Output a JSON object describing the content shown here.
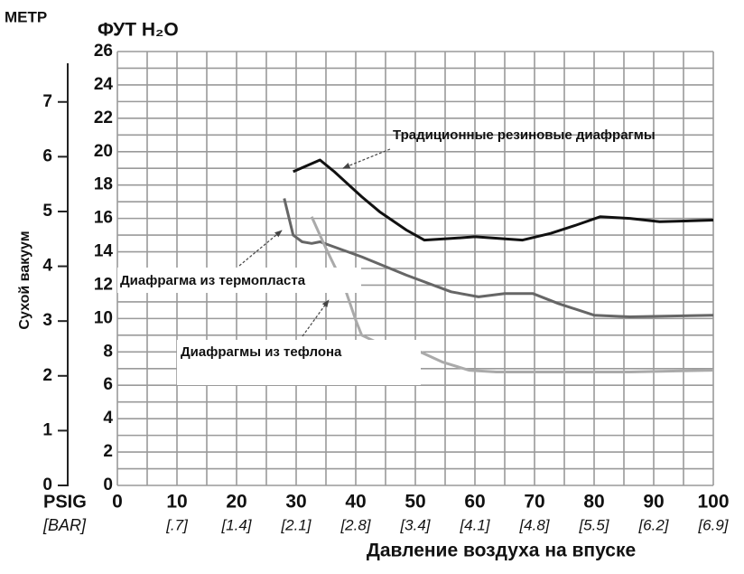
{
  "chart_data": {
    "type": "line",
    "y_unit": "ФУТ H₂O",
    "y2_unit": "МЕТР",
    "y_title": "Сухой вакуум",
    "x_title": "Давление воздуха на впуске",
    "x_unit": "PSIG",
    "x2_unit": "[BAR]",
    "xlim": [
      0,
      100
    ],
    "xticks": [
      0,
      10,
      20,
      30,
      40,
      50,
      60,
      70,
      80,
      90,
      100
    ],
    "x2ticks": [
      {
        "value": 10,
        "label": "[.7]"
      },
      {
        "value": 20,
        "label": "[1.4]"
      },
      {
        "value": 30,
        "label": "[2.1]"
      },
      {
        "value": 40,
        "label": "[2.8]"
      },
      {
        "value": 50,
        "label": "[3.4]"
      },
      {
        "value": 60,
        "label": "[4.1]"
      },
      {
        "value": 70,
        "label": "[4.8]"
      },
      {
        "value": 80,
        "label": "[5.5]"
      },
      {
        "value": 90,
        "label": "[6.2]"
      },
      {
        "value": 100,
        "label": "[6.9]"
      }
    ],
    "x_minor_ticks": [
      5,
      15,
      25,
      35,
      45,
      55,
      65,
      75,
      85,
      95
    ],
    "ylim": [
      0,
      26
    ],
    "yticks": [
      0,
      2,
      4,
      6,
      8,
      10,
      12,
      14,
      16,
      18,
      20,
      22,
      24,
      26
    ],
    "y_minor_ticks": [
      1,
      3,
      5,
      7,
      9,
      11,
      13,
      15,
      17,
      19,
      21,
      23,
      25
    ],
    "y2lim": [
      0,
      7.92
    ],
    "y2ticks": [
      0,
      1,
      2,
      3,
      4,
      5,
      6,
      7
    ],
    "grid": true,
    "series": [
      {
        "name": "Традиционные резиновые диафрагмы",
        "color": "#111111",
        "x": [
          29.5,
          34,
          36.4,
          41,
          44,
          48.5,
          51.5,
          56,
          60,
          68,
          72.7,
          77,
          81,
          86,
          91,
          100
        ],
        "values": [
          18.8,
          19.5,
          18.8,
          17.3,
          16.4,
          15.3,
          14.7,
          14.8,
          14.9,
          14.7,
          15.1,
          15.6,
          16.1,
          16.0,
          15.8,
          15.9
        ]
      },
      {
        "name": "Диафрагма из термопласта",
        "color": "#666666",
        "x": [
          28,
          29.5,
          31,
          32.6,
          34,
          41,
          48.5,
          56,
          60.6,
          65,
          69.7,
          74,
          80,
          86,
          100
        ],
        "values": [
          17.2,
          15.0,
          14.6,
          14.5,
          14.6,
          13.7,
          12.6,
          11.6,
          11.3,
          11.5,
          11.5,
          10.9,
          10.2,
          10.1,
          10.2
        ]
      },
      {
        "name": "Диафрагмы из тефлона",
        "color": "#aaaaaa",
        "x": [
          32.6,
          35,
          38,
          40,
          41,
          44,
          48,
          50.8,
          54.5,
          59,
          63.6,
          71,
          86,
          100
        ],
        "values": [
          16.1,
          14.2,
          12.0,
          9.9,
          9.0,
          8.5,
          8.2,
          8.0,
          7.4,
          6.9,
          6.8,
          6.8,
          6.8,
          6.9
        ]
      }
    ]
  }
}
